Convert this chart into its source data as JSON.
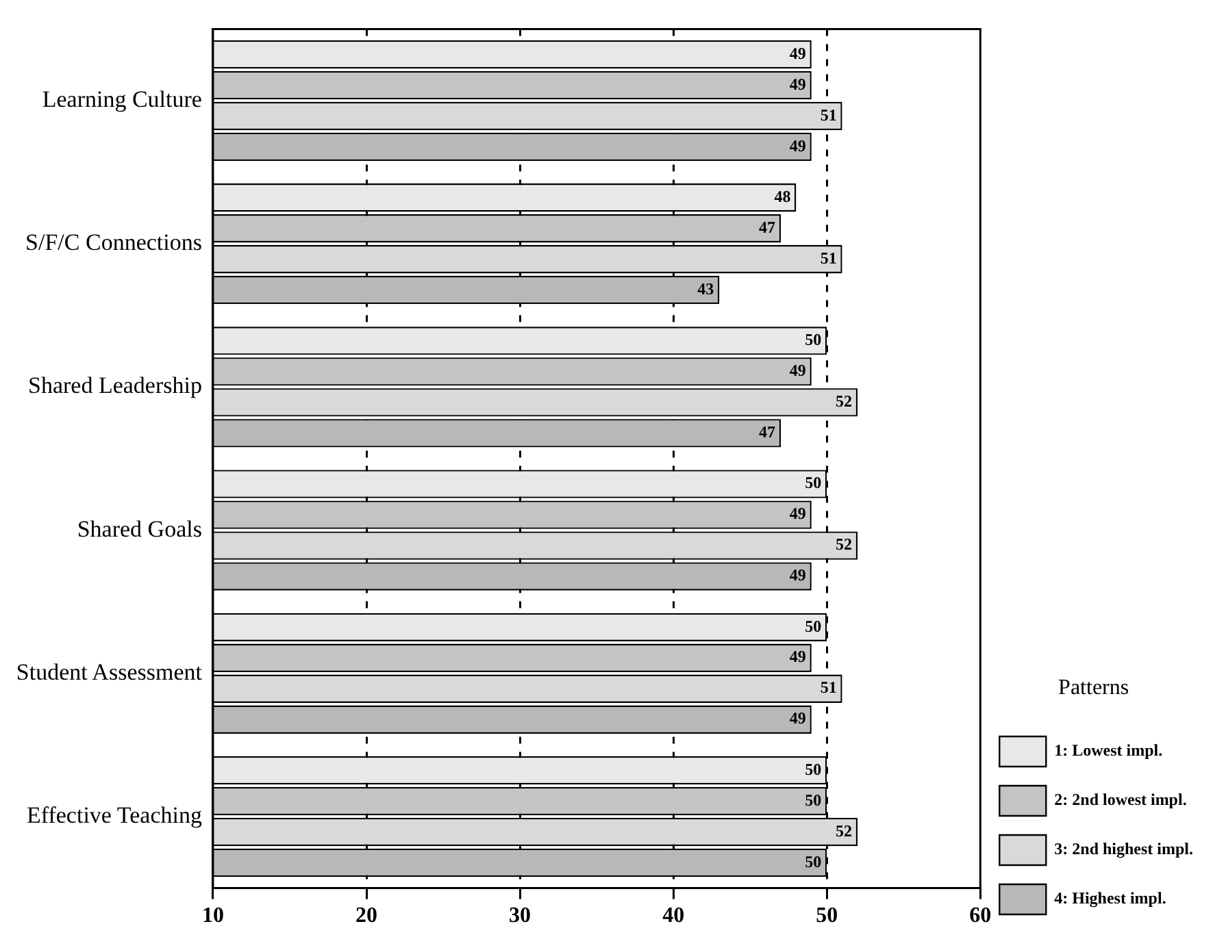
{
  "chart_data": {
    "type": "bar",
    "orientation": "horizontal",
    "categories": [
      "Learning Culture",
      "S/F/C Connections",
      "Shared Leadership",
      "Shared Goals",
      "Student Assessment",
      "Effective Teaching"
    ],
    "series": [
      {
        "name": "1: Lowest impl.",
        "color": "#e8e8e8",
        "values": [
          49,
          48,
          50,
          50,
          50,
          50
        ]
      },
      {
        "name": "2: 2nd lowest impl.",
        "color": "#c4c4c4",
        "values": [
          49,
          47,
          49,
          49,
          49,
          50
        ]
      },
      {
        "name": "3: 2nd highest impl.",
        "color": "#d9d9d9",
        "values": [
          51,
          51,
          52,
          52,
          51,
          52
        ]
      },
      {
        "name": "4: Highest impl.",
        "color": "#b8b8b8",
        "values": [
          49,
          43,
          47,
          49,
          49,
          50
        ]
      }
    ],
    "xlim": [
      10,
      60
    ],
    "xticks": [
      10,
      20,
      30,
      40,
      50,
      60
    ],
    "grid": "x",
    "legend": "right",
    "legend_title": "Patterns",
    "data_labels": true
  }
}
